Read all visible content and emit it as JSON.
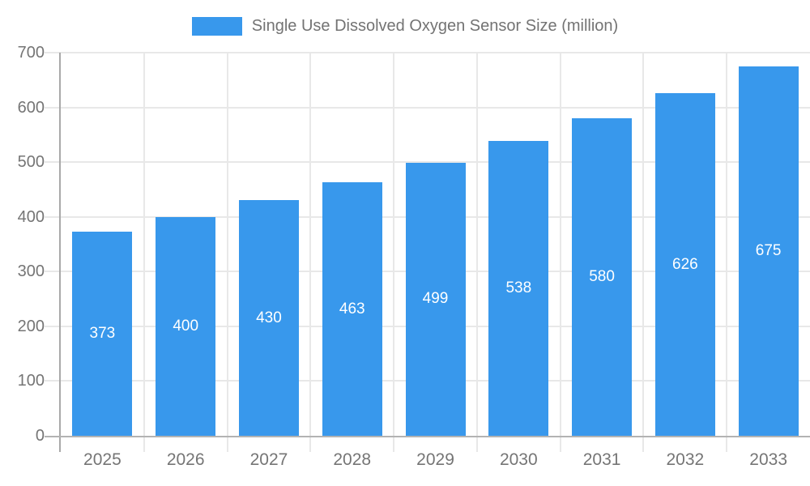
{
  "chart_data": {
    "type": "bar",
    "legend": "Single Use Dissolved Oxygen Sensor Size (million)",
    "legend_position": "top",
    "categories": [
      "2025",
      "2026",
      "2027",
      "2028",
      "2029",
      "2030",
      "2031",
      "2032",
      "2033"
    ],
    "values": [
      373,
      400,
      430,
      463,
      499,
      538,
      580,
      626,
      675
    ],
    "xlabel": "",
    "ylabel": "",
    "ylim": [
      0,
      700
    ],
    "ytick_step": 100,
    "grid": true,
    "colors": {
      "bar": "#3898ec",
      "value_label": "#ffffff",
      "tick_label": "#757575",
      "legend_label": "#737373",
      "gridline": "#e8e8e8",
      "y_axis_line": "#a9a9a9",
      "x_axis_line": "#b3b3b3"
    }
  }
}
